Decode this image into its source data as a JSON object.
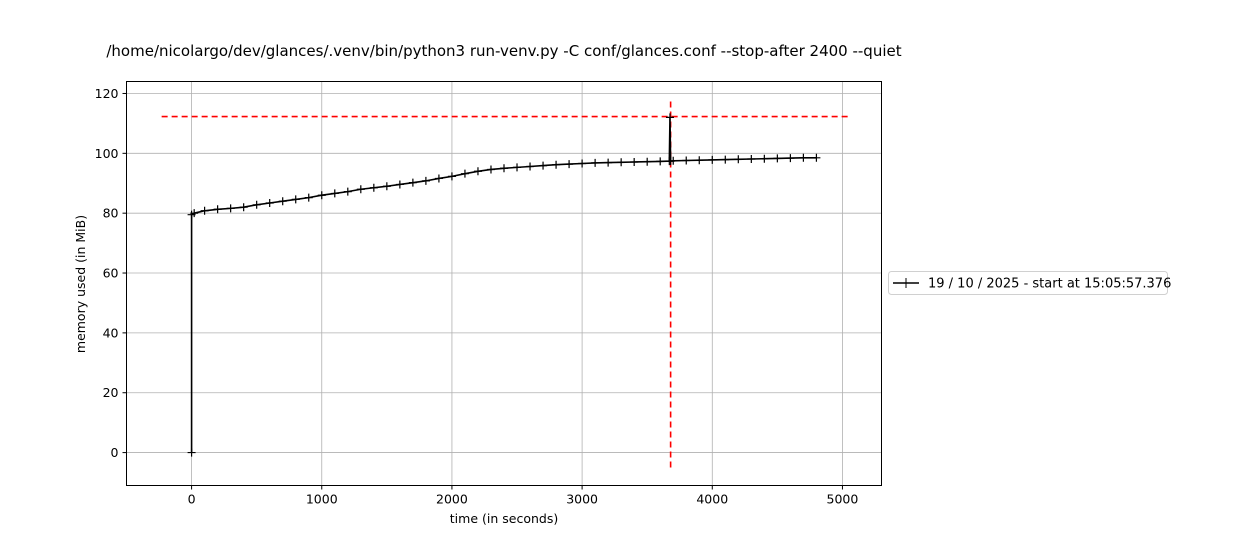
{
  "chart_data": {
    "type": "line",
    "title": "/home/nicolargo/dev/glances/.venv/bin/python3 run-venv.py -C conf/glances.conf --stop-after 2400 --quiet",
    "xlabel": "time (in seconds)",
    "ylabel": "memory used (in MiB)",
    "xlim": [
      -500,
      5300
    ],
    "ylim": [
      -11,
      124
    ],
    "xticks": [
      0,
      1000,
      2000,
      3000,
      4000,
      5000
    ],
    "yticks": [
      0,
      20,
      40,
      60,
      80,
      100,
      120
    ],
    "grid": true,
    "legend_position": "right",
    "series": [
      {
        "name": "19 / 10 / 2025 - start at 15:05:57.376",
        "color": "#000000",
        "marker": "+",
        "x": [
          0,
          0,
          20,
          100,
          200,
          300,
          400,
          500,
          600,
          700,
          800,
          900,
          1000,
          1100,
          1200,
          1300,
          1400,
          1500,
          1600,
          1700,
          1800,
          1900,
          2000,
          2100,
          2200,
          2300,
          2400,
          2500,
          2600,
          2700,
          2800,
          2900,
          3000,
          3100,
          3200,
          3300,
          3400,
          3500,
          3600,
          3670,
          3675,
          3680,
          3700,
          3800,
          3900,
          4000,
          4100,
          4200,
          4300,
          4400,
          4500,
          4600,
          4700,
          4800
        ],
        "y": [
          0,
          79.5,
          80,
          80.8,
          81.3,
          81.6,
          82,
          82.8,
          83.4,
          84,
          84.6,
          85.2,
          86,
          86.6,
          87.2,
          88,
          88.5,
          89,
          89.6,
          90.2,
          90.8,
          91.6,
          92.3,
          93.2,
          94,
          94.6,
          95,
          95.3,
          95.6,
          95.9,
          96.2,
          96.4,
          96.6,
          96.8,
          96.9,
          97,
          97.1,
          97.2,
          97.3,
          97.4,
          112,
          97.4,
          97.5,
          97.6,
          97.7,
          97.8,
          97.9,
          98,
          98.1,
          98.2,
          98.3,
          98.4,
          98.5,
          98.5
        ]
      }
    ],
    "reference_lines": [
      {
        "orientation": "horizontal",
        "y": 112.3,
        "x_from": -230,
        "x_to": 5040,
        "color": "#ff0000",
        "style": "dashed"
      },
      {
        "orientation": "vertical",
        "x": 3680,
        "y_from": -5,
        "y_to": 118,
        "color": "#ff0000",
        "style": "dashed"
      }
    ]
  }
}
